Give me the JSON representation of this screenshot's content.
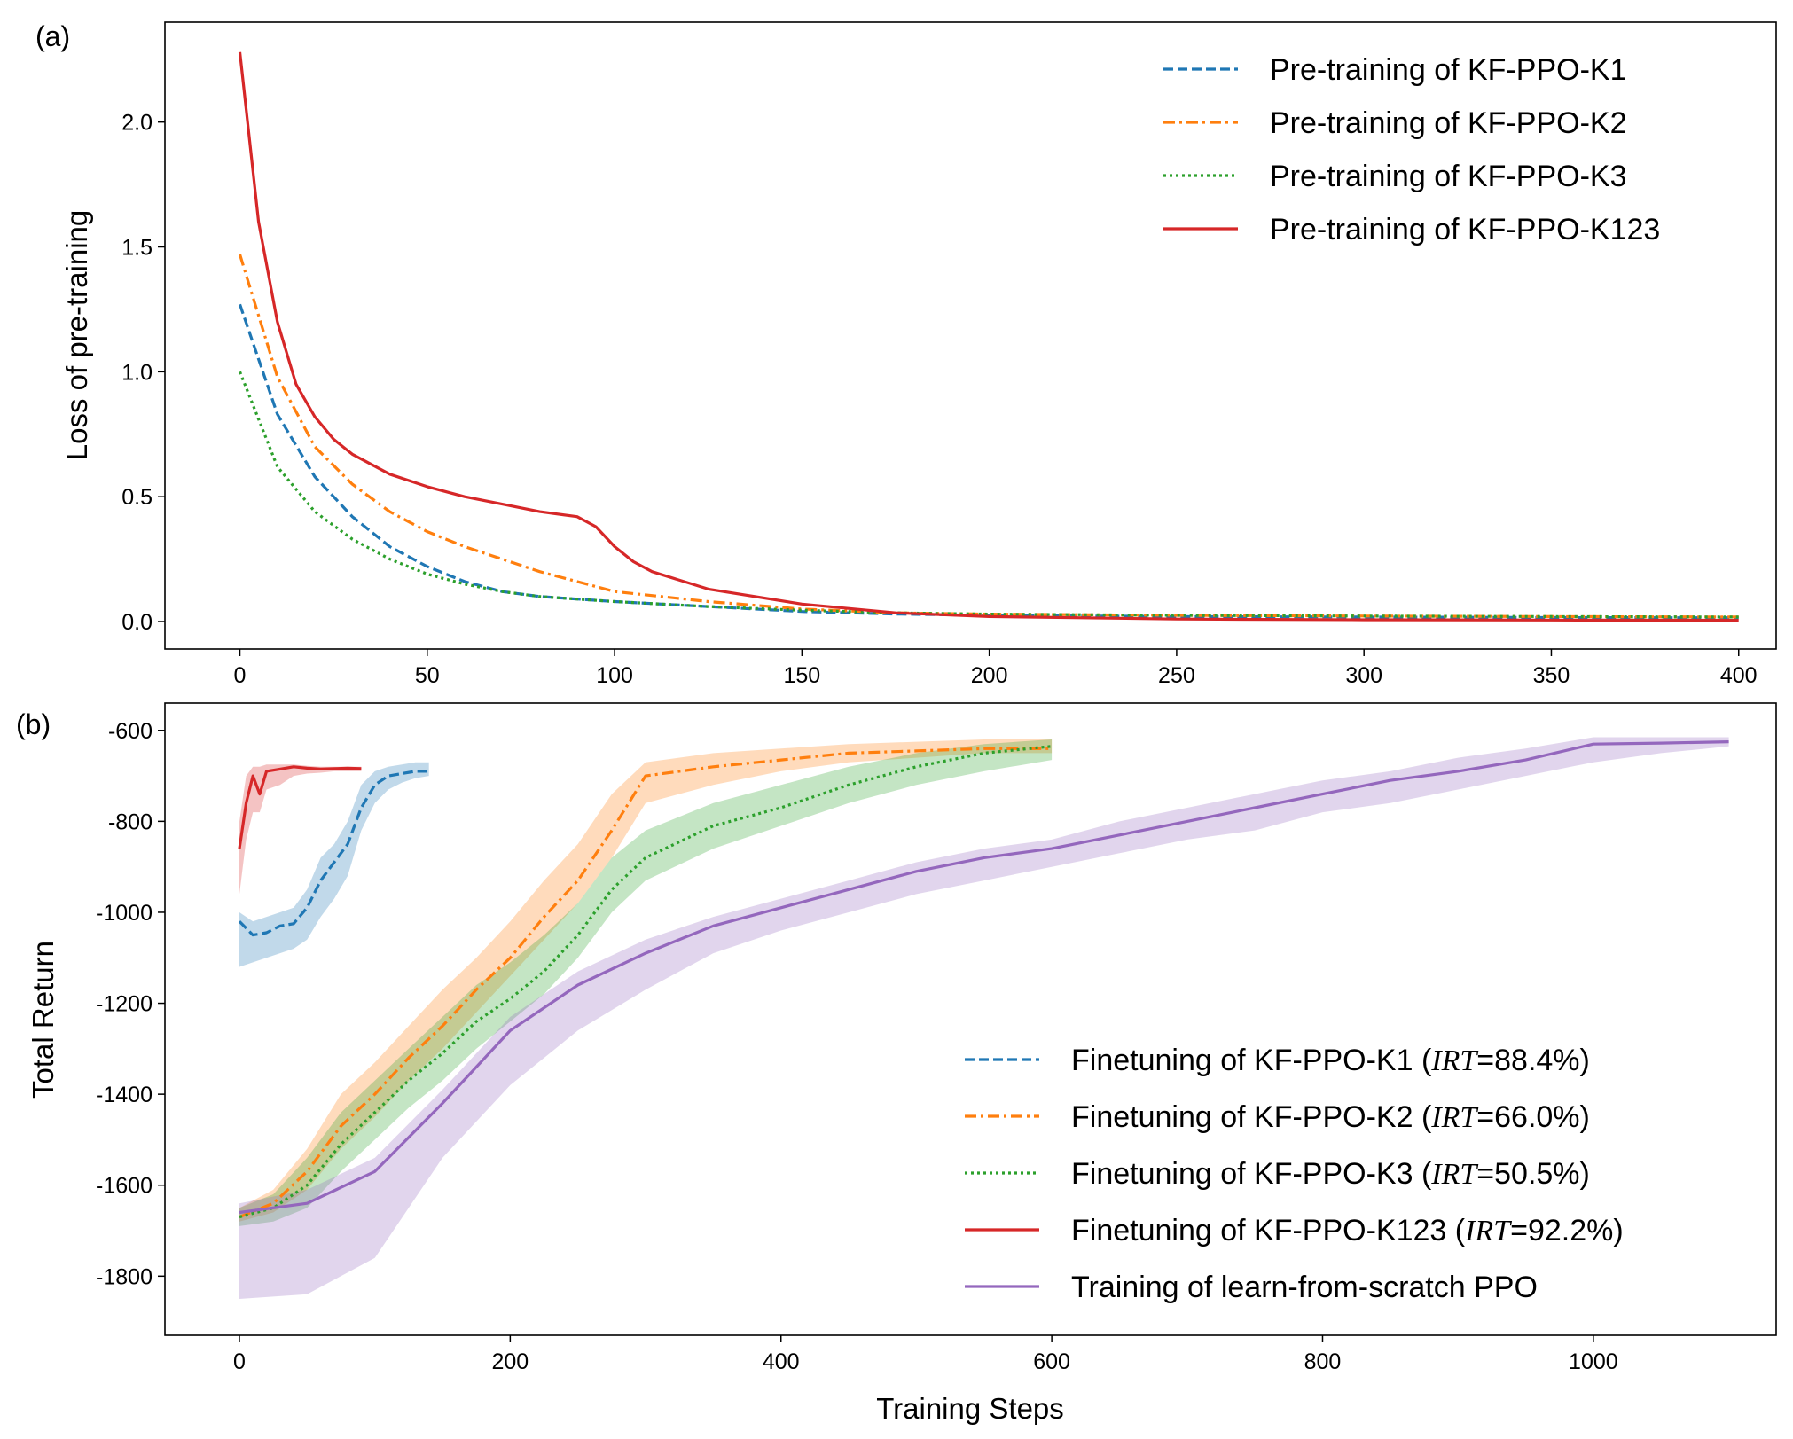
{
  "chart_data": [
    {
      "type": "line",
      "panel_label": "(a)",
      "xlabel": "",
      "ylabel": "Loss of pre-training",
      "xlim": [
        -20,
        410
      ],
      "ylim": [
        -0.11,
        2.4
      ],
      "xticks": [
        0,
        50,
        100,
        150,
        200,
        250,
        300,
        350,
        400
      ],
      "yticks": [
        0.0,
        0.5,
        1.0,
        1.5,
        2.0
      ],
      "ytick_labels": [
        "0.0",
        "0.5",
        "1.0",
        "1.5",
        "2.0"
      ],
      "legend_position": "top-right",
      "series": [
        {
          "name": "Pre-training of KF-PPO-K1",
          "color": "#1f77b4",
          "style": "dashed",
          "x": [
            0,
            10,
            20,
            30,
            40,
            50,
            60,
            70,
            80,
            90,
            100,
            125,
            150,
            175,
            200,
            250,
            300,
            350,
            400
          ],
          "y": [
            1.27,
            0.83,
            0.58,
            0.42,
            0.3,
            0.22,
            0.16,
            0.12,
            0.1,
            0.09,
            0.08,
            0.06,
            0.04,
            0.03,
            0.025,
            0.02,
            0.018,
            0.016,
            0.015
          ]
        },
        {
          "name": "Pre-training of KF-PPO-K2",
          "color": "#ff7f0e",
          "style": "dashdot",
          "x": [
            0,
            10,
            20,
            30,
            40,
            50,
            60,
            70,
            80,
            90,
            100,
            125,
            150,
            175,
            200,
            250,
            300,
            350,
            400
          ],
          "y": [
            1.47,
            0.98,
            0.7,
            0.55,
            0.44,
            0.36,
            0.3,
            0.25,
            0.2,
            0.16,
            0.12,
            0.08,
            0.05,
            0.035,
            0.03,
            0.025,
            0.022,
            0.02,
            0.018
          ]
        },
        {
          "name": "Pre-training of KF-PPO-K3",
          "color": "#2ca02c",
          "style": "dotted",
          "x": [
            0,
            10,
            20,
            30,
            40,
            50,
            60,
            70,
            80,
            90,
            100,
            125,
            150,
            175,
            200,
            250,
            300,
            350,
            400
          ],
          "y": [
            1.0,
            0.62,
            0.44,
            0.33,
            0.25,
            0.19,
            0.15,
            0.12,
            0.1,
            0.09,
            0.08,
            0.06,
            0.045,
            0.035,
            0.03,
            0.025,
            0.022,
            0.02,
            0.018
          ]
        },
        {
          "name": "Pre-training of KF-PPO-K123",
          "color": "#d62728",
          "style": "solid",
          "x": [
            0,
            5,
            10,
            15,
            20,
            25,
            30,
            40,
            50,
            60,
            70,
            80,
            90,
            95,
            100,
            105,
            110,
            125,
            150,
            175,
            200,
            250,
            300,
            350,
            400
          ],
          "y": [
            2.28,
            1.6,
            1.2,
            0.95,
            0.82,
            0.73,
            0.67,
            0.59,
            0.54,
            0.5,
            0.47,
            0.44,
            0.42,
            0.38,
            0.3,
            0.24,
            0.2,
            0.13,
            0.07,
            0.035,
            0.02,
            0.01,
            0.007,
            0.006,
            0.005
          ]
        }
      ]
    },
    {
      "type": "line",
      "panel_label": "(b)",
      "xlabel": "Training Steps",
      "ylabel": "Total Return",
      "xlim": [
        -55,
        1135
      ],
      "ylim": [
        -1930,
        -540
      ],
      "xticks": [
        0,
        200,
        400,
        600,
        800,
        1000
      ],
      "yticks": [
        -600,
        -800,
        -1000,
        -1200,
        -1400,
        -1600,
        -1800
      ],
      "legend_position": "bottom-right",
      "series": [
        {
          "name": "Finetuning of KF-PPO-K1 (",
          "irt": "IRT",
          "irt_value": "=88.4%)",
          "color": "#1f77b4",
          "style": "dashed",
          "x": [
            0,
            10,
            20,
            30,
            40,
            50,
            60,
            70,
            80,
            90,
            100,
            110,
            120,
            130,
            140
          ],
          "y": [
            -1020,
            -1050,
            -1045,
            -1030,
            -1025,
            -990,
            -930,
            -890,
            -850,
            -770,
            -720,
            -700,
            -695,
            -690,
            -690
          ],
          "band_low": [
            -1120,
            -1110,
            -1100,
            -1090,
            -1080,
            -1060,
            -1010,
            -970,
            -920,
            -820,
            -760,
            -730,
            -715,
            -705,
            -700
          ],
          "band_high": [
            -1000,
            -1020,
            -1010,
            -1000,
            -990,
            -950,
            -880,
            -850,
            -800,
            -720,
            -690,
            -680,
            -675,
            -670,
            -670
          ]
        },
        {
          "name": "Finetuning of KF-PPO-K2 (",
          "irt": "IRT",
          "irt_value": "=66.0%)",
          "color": "#ff7f0e",
          "style": "dashdot",
          "x": [
            0,
            25,
            50,
            75,
            100,
            125,
            150,
            175,
            200,
            225,
            250,
            275,
            300,
            350,
            400,
            450,
            500,
            550,
            600
          ],
          "y": [
            -1670,
            -1640,
            -1570,
            -1470,
            -1400,
            -1320,
            -1250,
            -1170,
            -1100,
            -1010,
            -930,
            -820,
            -700,
            -680,
            -665,
            -650,
            -645,
            -640,
            -640
          ],
          "band_low": [
            -1680,
            -1660,
            -1610,
            -1520,
            -1450,
            -1370,
            -1300,
            -1220,
            -1140,
            -1060,
            -980,
            -880,
            -760,
            -720,
            -690,
            -670,
            -660,
            -650,
            -650
          ],
          "band_high": [
            -1650,
            -1610,
            -1520,
            -1400,
            -1330,
            -1250,
            -1170,
            -1100,
            -1020,
            -930,
            -850,
            -740,
            -670,
            -650,
            -640,
            -630,
            -625,
            -620,
            -620
          ]
        },
        {
          "name": "Finetuning of KF-PPO-K3 (",
          "irt": "IRT",
          "irt_value": "=50.5%)",
          "color": "#2ca02c",
          "style": "dotted",
          "x": [
            0,
            25,
            50,
            75,
            100,
            125,
            150,
            175,
            200,
            225,
            250,
            275,
            300,
            350,
            400,
            450,
            500,
            550,
            600
          ],
          "y": [
            -1670,
            -1650,
            -1600,
            -1510,
            -1440,
            -1370,
            -1310,
            -1240,
            -1190,
            -1130,
            -1050,
            -950,
            -880,
            -810,
            -770,
            -720,
            -680,
            -650,
            -635
          ],
          "band_low": [
            -1690,
            -1680,
            -1650,
            -1570,
            -1500,
            -1430,
            -1370,
            -1300,
            -1240,
            -1180,
            -1100,
            -1000,
            -930,
            -860,
            -810,
            -760,
            -720,
            -690,
            -665
          ],
          "band_high": [
            -1650,
            -1620,
            -1540,
            -1440,
            -1370,
            -1300,
            -1230,
            -1160,
            -1110,
            -1050,
            -980,
            -880,
            -820,
            -760,
            -720,
            -680,
            -650,
            -630,
            -620
          ]
        },
        {
          "name": "Finetuning of KF-PPO-K123 (",
          "irt": "IRT",
          "irt_value": "=92.2%)",
          "color": "#d62728",
          "style": "solid",
          "x": [
            0,
            5,
            10,
            15,
            20,
            30,
            40,
            50,
            60,
            70,
            80,
            90
          ],
          "y": [
            -860,
            -760,
            -700,
            -740,
            -690,
            -685,
            -680,
            -683,
            -685,
            -684,
            -683,
            -684
          ],
          "band_low": [
            -960,
            -840,
            -780,
            -780,
            -730,
            -720,
            -700,
            -695,
            -693,
            -690,
            -690,
            -690
          ],
          "band_high": [
            -800,
            -700,
            -680,
            -680,
            -675,
            -675,
            -675,
            -678,
            -680,
            -680,
            -680,
            -680
          ]
        },
        {
          "name": "Training of learn-from-scratch PPO",
          "color": "#9467bd",
          "style": "solid",
          "x": [
            0,
            50,
            100,
            150,
            200,
            250,
            300,
            350,
            400,
            450,
            500,
            550,
            600,
            650,
            700,
            750,
            800,
            850,
            900,
            950,
            1000,
            1050,
            1100
          ],
          "y": [
            -1660,
            -1640,
            -1570,
            -1420,
            -1260,
            -1160,
            -1090,
            -1030,
            -990,
            -950,
            -910,
            -880,
            -860,
            -830,
            -800,
            -770,
            -740,
            -710,
            -690,
            -665,
            -630,
            -628,
            -625
          ],
          "band_low": [
            -1850,
            -1840,
            -1760,
            -1540,
            -1380,
            -1260,
            -1170,
            -1090,
            -1040,
            -1000,
            -960,
            -930,
            -900,
            -870,
            -840,
            -820,
            -780,
            -760,
            -730,
            -700,
            -670,
            -650,
            -635
          ],
          "band_high": [
            -1640,
            -1610,
            -1540,
            -1390,
            -1230,
            -1130,
            -1060,
            -1010,
            -970,
            -930,
            -890,
            -860,
            -840,
            -800,
            -770,
            -740,
            -710,
            -690,
            -660,
            -640,
            -615,
            -615,
            -615
          ]
        }
      ]
    }
  ]
}
